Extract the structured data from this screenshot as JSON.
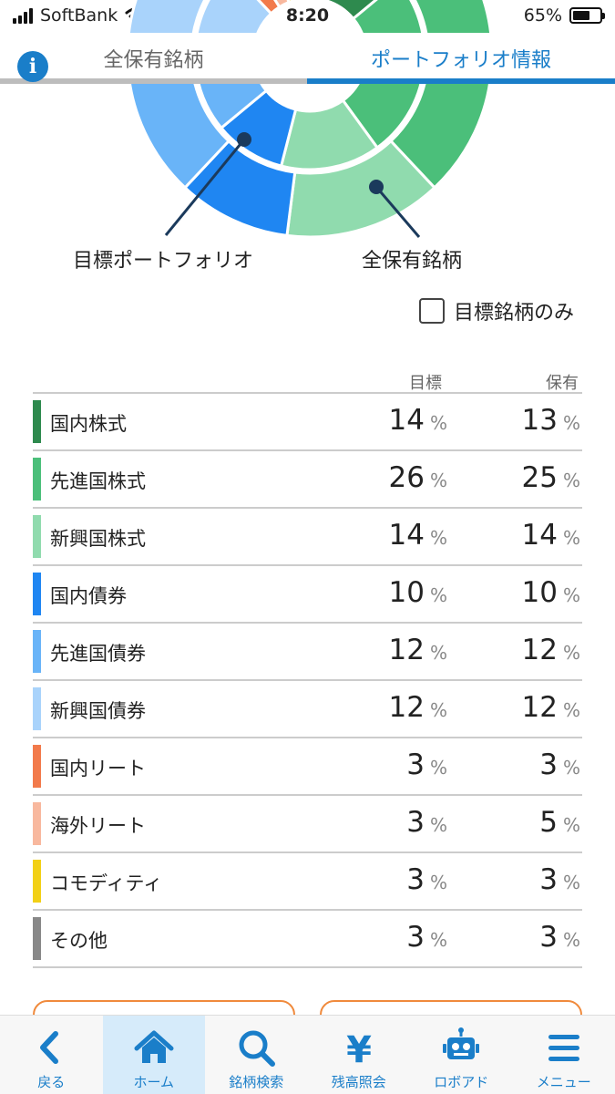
{
  "status": {
    "carrier": "SoftBank",
    "time": "8:20",
    "battery": "65%",
    "battery_level": 0.65
  },
  "tabs": {
    "left": "全保有銘柄",
    "right": "ポートフォリオ情報",
    "active": "right"
  },
  "chart": {
    "label_target": "目標ポートフォリオ",
    "label_holdings": "全保有銘柄"
  },
  "filter": {
    "label": "目標銘柄のみ",
    "checked": false
  },
  "table": {
    "header_target": "目標",
    "header_holdings": "保有",
    "unit": "%",
    "rows": [
      {
        "name": "国内株式",
        "target": "14",
        "holdings": "13",
        "color": "#2e8a4e"
      },
      {
        "name": "先進国株式",
        "target": "26",
        "holdings": "25",
        "color": "#4bbf7a"
      },
      {
        "name": "新興国株式",
        "target": "14",
        "holdings": "14",
        "color": "#90dbae"
      },
      {
        "name": "国内債券",
        "target": "10",
        "holdings": "10",
        "color": "#1f86f2"
      },
      {
        "name": "先進国債券",
        "target": "12",
        "holdings": "12",
        "color": "#69b4f8"
      },
      {
        "name": "新興国債券",
        "target": "12",
        "holdings": "12",
        "color": "#a9d3fb"
      },
      {
        "name": "国内リート",
        "target": "3",
        "holdings": "3",
        "color": "#f27a4b"
      },
      {
        "name": "海外リート",
        "target": "3",
        "holdings": "5",
        "color": "#f8b89e"
      },
      {
        "name": "コモディティ",
        "target": "3",
        "holdings": "3",
        "color": "#f2d016"
      },
      {
        "name": "その他",
        "target": "3",
        "holdings": "3",
        "color": "#888888"
      }
    ]
  },
  "nav": [
    {
      "label": "戻る",
      "icon": "back-chevron-icon"
    },
    {
      "label": "ホーム",
      "icon": "home-icon",
      "active": true
    },
    {
      "label": "銘柄検索",
      "icon": "search-icon"
    },
    {
      "label": "残高照会",
      "icon": "yen-icon"
    },
    {
      "label": "ロボアド",
      "icon": "robot-icon"
    },
    {
      "label": "メニュー",
      "icon": "menu-icon"
    }
  ]
}
